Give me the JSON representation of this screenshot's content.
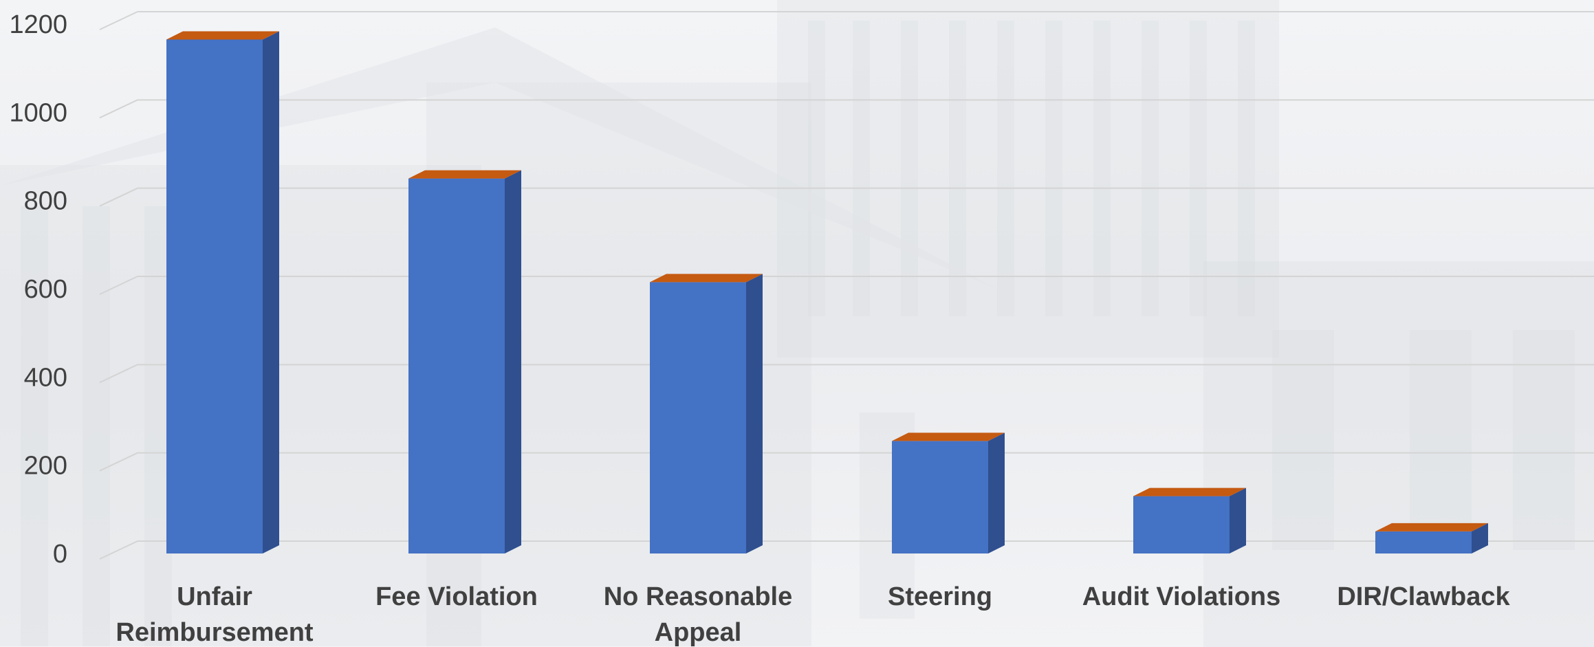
{
  "chart_data": {
    "type": "bar",
    "categories": [
      "Unfair Reimbursement",
      "Fee Violation",
      "No Reasonable Appeal",
      "Steering",
      "Audit Violations",
      "DIR/Clawback"
    ],
    "category_label_lines": [
      [
        "Unfair",
        "Reimbursement"
      ],
      [
        "Fee Violation"
      ],
      [
        "No Reasonable",
        "Appeal"
      ],
      [
        "Steering"
      ],
      [
        "Audit Violations"
      ],
      [
        "DIR/Clawback"
      ]
    ],
    "values": [
      1165,
      850,
      615,
      255,
      130,
      50
    ],
    "title": "",
    "xlabel": "",
    "ylabel": "",
    "ylim": [
      0,
      1200
    ],
    "yticks": [
      0,
      200,
      400,
      600,
      800,
      1000,
      1200
    ],
    "grid": true,
    "legend": "none",
    "style": "3d-column",
    "colors": {
      "bar_front": "#4472c4",
      "bar_side": "#2f4f8f",
      "bar_top": "#c55a11",
      "grid": "#d4d4d4",
      "text": "#404040"
    }
  }
}
